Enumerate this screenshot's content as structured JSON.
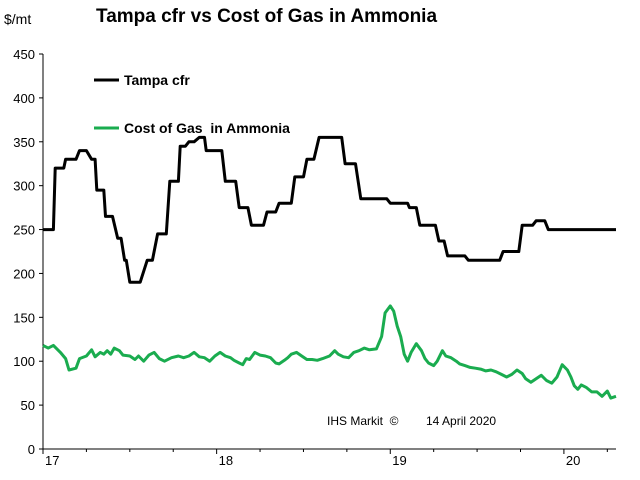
{
  "chart_data": {
    "type": "line",
    "title": "Tampa cfr vs Cost of Gas in Ammonia",
    "ylabel": "$/mt",
    "xlabel": "",
    "ylim": [
      0,
      450
    ],
    "xlim": [
      0,
      3.3
    ],
    "y_ticks": [
      "0",
      "50",
      "100",
      "150",
      "200",
      "250",
      "300",
      "350",
      "400",
      "450"
    ],
    "x_ticks": [
      {
        "label": "17",
        "x": 0
      },
      {
        "label": "18",
        "x": 1
      },
      {
        "label": "19",
        "x": 2
      },
      {
        "label": "20",
        "x": 3
      }
    ],
    "grid": false,
    "legend": "top-left",
    "annotations": {
      "source": "IHS Markit  ©",
      "date": "14 April 2020"
    },
    "series": [
      {
        "name": "Tampa cfr",
        "color": "#000000",
        "points": [
          [
            0.0,
            250
          ],
          [
            0.06,
            250
          ],
          [
            0.07,
            320
          ],
          [
            0.12,
            320
          ],
          [
            0.13,
            330
          ],
          [
            0.19,
            330
          ],
          [
            0.21,
            340
          ],
          [
            0.25,
            340
          ],
          [
            0.28,
            330
          ],
          [
            0.3,
            330
          ],
          [
            0.31,
            295
          ],
          [
            0.35,
            295
          ],
          [
            0.36,
            265
          ],
          [
            0.4,
            265
          ],
          [
            0.43,
            240
          ],
          [
            0.45,
            240
          ],
          [
            0.47,
            215
          ],
          [
            0.48,
            215
          ],
          [
            0.5,
            190
          ],
          [
            0.56,
            190
          ],
          [
            0.6,
            215
          ],
          [
            0.63,
            215
          ],
          [
            0.66,
            245
          ],
          [
            0.71,
            245
          ],
          [
            0.73,
            305
          ],
          [
            0.78,
            305
          ],
          [
            0.79,
            345
          ],
          [
            0.82,
            345
          ],
          [
            0.84,
            350
          ],
          [
            0.87,
            350
          ],
          [
            0.9,
            355
          ],
          [
            0.93,
            355
          ],
          [
            0.94,
            340
          ],
          [
            1.03,
            340
          ],
          [
            1.05,
            305
          ],
          [
            1.11,
            305
          ],
          [
            1.13,
            275
          ],
          [
            1.18,
            275
          ],
          [
            1.2,
            255
          ],
          [
            1.27,
            255
          ],
          [
            1.29,
            270
          ],
          [
            1.34,
            270
          ],
          [
            1.36,
            280
          ],
          [
            1.43,
            280
          ],
          [
            1.45,
            310
          ],
          [
            1.5,
            310
          ],
          [
            1.52,
            330
          ],
          [
            1.56,
            330
          ],
          [
            1.59,
            355
          ],
          [
            1.72,
            355
          ],
          [
            1.74,
            325
          ],
          [
            1.8,
            325
          ],
          [
            1.83,
            285
          ],
          [
            1.98,
            285
          ],
          [
            2.0,
            280
          ],
          [
            2.1,
            280
          ],
          [
            2.11,
            275
          ],
          [
            2.15,
            275
          ],
          [
            2.17,
            255
          ],
          [
            2.26,
            255
          ],
          [
            2.28,
            237
          ],
          [
            2.31,
            237
          ],
          [
            2.33,
            220
          ],
          [
            2.43,
            220
          ],
          [
            2.45,
            215
          ],
          [
            2.63,
            215
          ],
          [
            2.65,
            225
          ],
          [
            2.74,
            225
          ],
          [
            2.76,
            255
          ],
          [
            2.82,
            255
          ],
          [
            2.84,
            260
          ],
          [
            2.89,
            260
          ],
          [
            2.91,
            250
          ],
          [
            3.3,
            250
          ]
        ]
      },
      {
        "name": "Cost of Gas  in Ammonia",
        "color": "#1aac4f",
        "points": [
          [
            0.0,
            118
          ],
          [
            0.03,
            115
          ],
          [
            0.06,
            118
          ],
          [
            0.1,
            110
          ],
          [
            0.13,
            103
          ],
          [
            0.15,
            90
          ],
          [
            0.19,
            92
          ],
          [
            0.21,
            103
          ],
          [
            0.25,
            106
          ],
          [
            0.28,
            113
          ],
          [
            0.3,
            105
          ],
          [
            0.33,
            110
          ],
          [
            0.35,
            108
          ],
          [
            0.37,
            112
          ],
          [
            0.39,
            108
          ],
          [
            0.41,
            115
          ],
          [
            0.44,
            112
          ],
          [
            0.46,
            107
          ],
          [
            0.5,
            106
          ],
          [
            0.53,
            102
          ],
          [
            0.55,
            106
          ],
          [
            0.58,
            100
          ],
          [
            0.61,
            107
          ],
          [
            0.64,
            110
          ],
          [
            0.67,
            103
          ],
          [
            0.7,
            100
          ],
          [
            0.74,
            104
          ],
          [
            0.78,
            106
          ],
          [
            0.81,
            104
          ],
          [
            0.84,
            106
          ],
          [
            0.87,
            110
          ],
          [
            0.9,
            105
          ],
          [
            0.93,
            104
          ],
          [
            0.96,
            100
          ],
          [
            0.99,
            106
          ],
          [
            1.02,
            110
          ],
          [
            1.05,
            106
          ],
          [
            1.08,
            104
          ],
          [
            1.1,
            101
          ],
          [
            1.13,
            98
          ],
          [
            1.15,
            96
          ],
          [
            1.17,
            103
          ],
          [
            1.19,
            102
          ],
          [
            1.22,
            110
          ],
          [
            1.25,
            107
          ],
          [
            1.28,
            106
          ],
          [
            1.31,
            104
          ],
          [
            1.34,
            98
          ],
          [
            1.36,
            97
          ],
          [
            1.39,
            101
          ],
          [
            1.41,
            104
          ],
          [
            1.43,
            108
          ],
          [
            1.46,
            110
          ],
          [
            1.49,
            106
          ],
          [
            1.52,
            102
          ],
          [
            1.55,
            102
          ],
          [
            1.58,
            101
          ],
          [
            1.61,
            103
          ],
          [
            1.65,
            106
          ],
          [
            1.68,
            112
          ],
          [
            1.7,
            108
          ],
          [
            1.73,
            105
          ],
          [
            1.76,
            104
          ],
          [
            1.79,
            110
          ],
          [
            1.82,
            112
          ],
          [
            1.85,
            115
          ],
          [
            1.88,
            113
          ],
          [
            1.92,
            114
          ],
          [
            1.95,
            128
          ],
          [
            1.97,
            155
          ],
          [
            2.0,
            163
          ],
          [
            2.02,
            157
          ],
          [
            2.04,
            140
          ],
          [
            2.06,
            128
          ],
          [
            2.08,
            108
          ],
          [
            2.1,
            100
          ],
          [
            2.12,
            110
          ],
          [
            2.15,
            120
          ],
          [
            2.18,
            112
          ],
          [
            2.2,
            103
          ],
          [
            2.22,
            98
          ],
          [
            2.25,
            95
          ],
          [
            2.27,
            100
          ],
          [
            2.3,
            112
          ],
          [
            2.32,
            106
          ],
          [
            2.35,
            104
          ],
          [
            2.38,
            100
          ],
          [
            2.4,
            97
          ],
          [
            2.43,
            95
          ],
          [
            2.46,
            93
          ],
          [
            2.49,
            92
          ],
          [
            2.52,
            91
          ],
          [
            2.55,
            89
          ],
          [
            2.58,
            90
          ],
          [
            2.61,
            88
          ],
          [
            2.64,
            85
          ],
          [
            2.67,
            82
          ],
          [
            2.7,
            85
          ],
          [
            2.73,
            90
          ],
          [
            2.76,
            86
          ],
          [
            2.78,
            80
          ],
          [
            2.81,
            76
          ],
          [
            2.84,
            80
          ],
          [
            2.87,
            84
          ],
          [
            2.9,
            78
          ],
          [
            2.93,
            75
          ],
          [
            2.96,
            82
          ],
          [
            2.99,
            96
          ],
          [
            3.02,
            90
          ],
          [
            3.04,
            82
          ],
          [
            3.06,
            72
          ],
          [
            3.08,
            68
          ],
          [
            3.1,
            73
          ],
          [
            3.13,
            70
          ],
          [
            3.16,
            65
          ],
          [
            3.19,
            65
          ],
          [
            3.22,
            60
          ],
          [
            3.25,
            66
          ],
          [
            3.27,
            58
          ],
          [
            3.3,
            60
          ]
        ]
      }
    ]
  }
}
